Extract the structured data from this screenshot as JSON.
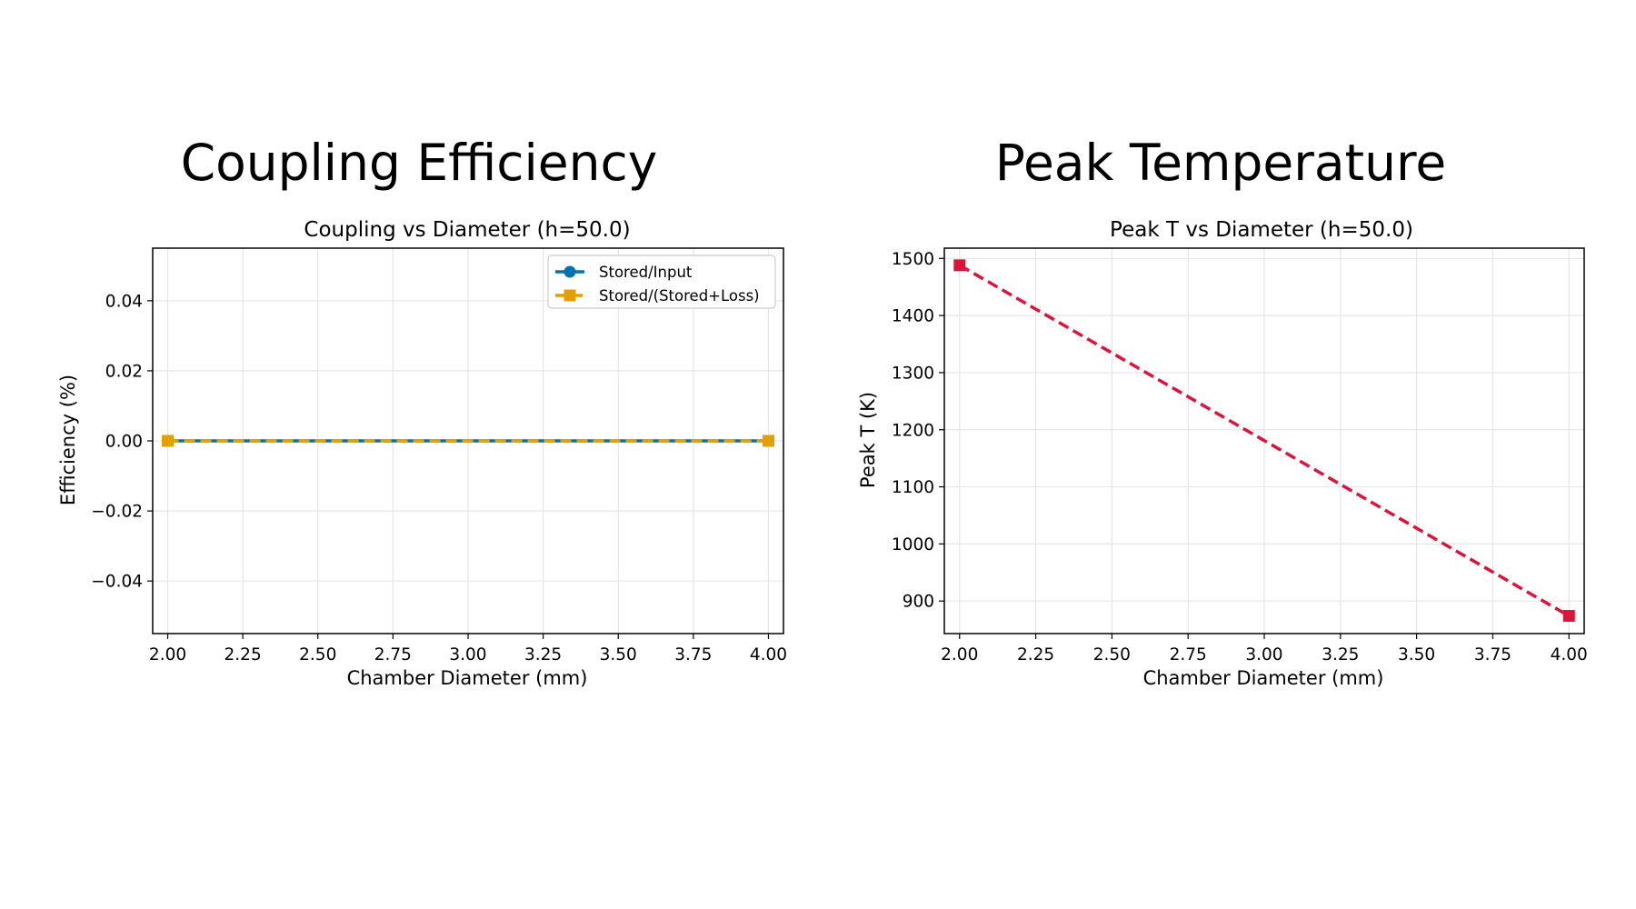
{
  "panels": [
    {
      "title": "Coupling Efficiency",
      "chart": {
        "title": "Coupling vs Diameter (h=50.0)",
        "xlabel": "Chamber Diameter (mm)",
        "ylabel": "Efficiency (%)"
      }
    },
    {
      "title": "Peak Temperature",
      "chart": {
        "title": "Peak T vs Diameter (h=50.0)",
        "xlabel": "Chamber Diameter (mm)",
        "ylabel": "Peak T (K)"
      }
    }
  ],
  "chart_data": [
    {
      "type": "line",
      "title": "Coupling vs Diameter (h=50.0)",
      "xlabel": "Chamber Diameter (mm)",
      "ylabel": "Efficiency (%)",
      "xlim": [
        1.95,
        4.05
      ],
      "ylim": [
        -0.055,
        0.055
      ],
      "xticks": [
        2.0,
        2.25,
        2.5,
        2.75,
        3.0,
        3.25,
        3.5,
        3.75,
        4.0
      ],
      "xtick_labels": [
        "2.00",
        "2.25",
        "2.50",
        "2.75",
        "3.00",
        "3.25",
        "3.50",
        "3.75",
        "4.00"
      ],
      "yticks": [
        -0.04,
        -0.02,
        0.0,
        0.02,
        0.04
      ],
      "ytick_labels": [
        "−0.04",
        "−0.02",
        "0.00",
        "0.02",
        "0.04"
      ],
      "grid": true,
      "legend": "upper right",
      "series": [
        {
          "name": "Stored/Input",
          "x": [
            2.0,
            4.0
          ],
          "y": [
            0.0,
            0.0
          ],
          "color": "#0072B2",
          "marker": "circle",
          "linestyle": "solid"
        },
        {
          "name": "Stored/(Stored+Loss)",
          "x": [
            2.0,
            4.0
          ],
          "y": [
            0.0,
            0.0
          ],
          "color": "#E69F00",
          "marker": "square",
          "linestyle": "dashed"
        }
      ]
    },
    {
      "type": "line",
      "title": "Peak T vs Diameter (h=50.0)",
      "xlabel": "Chamber Diameter (mm)",
      "ylabel": "Peak T (K)",
      "xlim": [
        1.95,
        4.05
      ],
      "ylim": [
        843,
        1518
      ],
      "xticks": [
        2.0,
        2.25,
        2.5,
        2.75,
        3.0,
        3.25,
        3.5,
        3.75,
        4.0
      ],
      "xtick_labels": [
        "2.00",
        "2.25",
        "2.50",
        "2.75",
        "3.00",
        "3.25",
        "3.50",
        "3.75",
        "4.00"
      ],
      "yticks": [
        900,
        1000,
        1100,
        1200,
        1300,
        1400,
        1500
      ],
      "ytick_labels": [
        "900",
        "1000",
        "1100",
        "1200",
        "1300",
        "1400",
        "1500"
      ],
      "grid": true,
      "legend": "none",
      "series": [
        {
          "x": [
            2.0,
            4.0
          ],
          "y": [
            1488,
            874
          ],
          "color": "#DC143C",
          "marker": "square",
          "linestyle": "dashed"
        }
      ]
    }
  ]
}
